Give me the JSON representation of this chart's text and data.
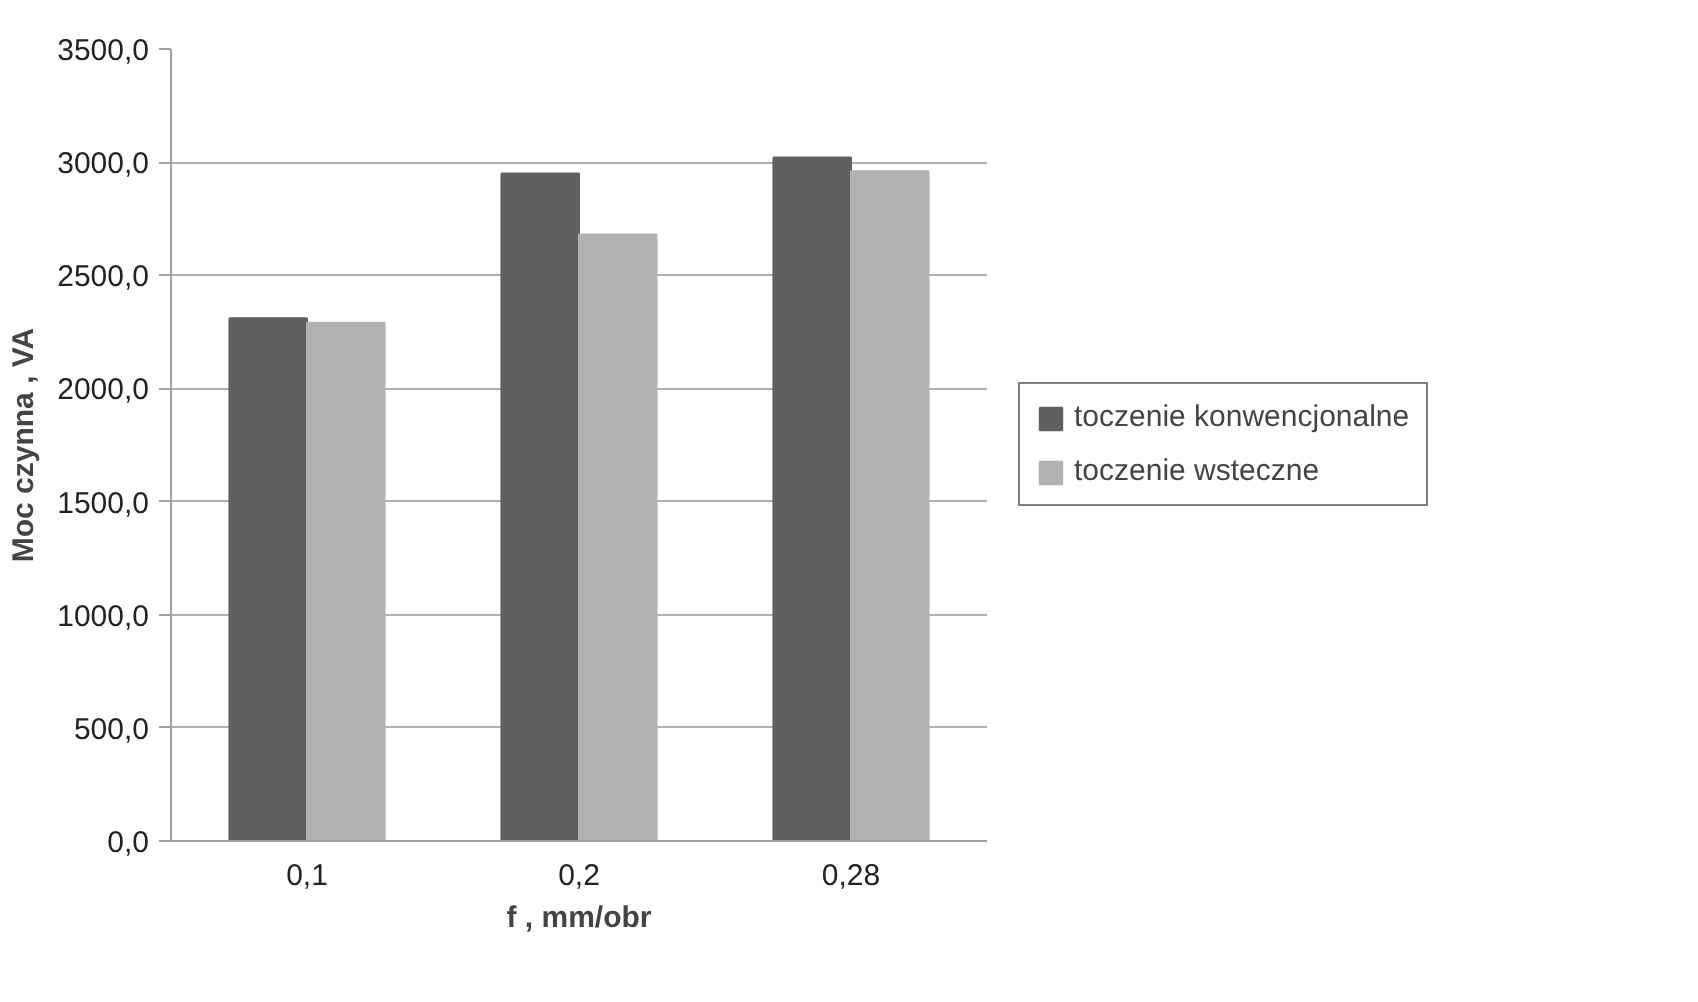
{
  "chart_data": {
    "type": "bar",
    "xlabel": "f , mm/obr",
    "ylabel": "Moc czynna , VA",
    "categories": [
      "0,1",
      "0,2",
      "0,28"
    ],
    "series": [
      {
        "name": "toczenie konwencjonalne",
        "color": "#606060",
        "values": [
          2310,
          2950,
          3020
        ]
      },
      {
        "name": "toczenie wsteczne",
        "color": "#b2b2b2",
        "values": [
          2290,
          2680,
          2960
        ]
      }
    ],
    "ylim": [
      0,
      3500
    ],
    "yticks": [
      {
        "value": 0,
        "label": "0,0"
      },
      {
        "value": 500,
        "label": "500,0"
      },
      {
        "value": 1000,
        "label": "1000,0"
      },
      {
        "value": 1500,
        "label": "1500,0"
      },
      {
        "value": 2000,
        "label": "2000,0"
      },
      {
        "value": 2500,
        "label": "2500,0"
      },
      {
        "value": 3000,
        "label": "3000,0"
      },
      {
        "value": 3500,
        "label": "3500,0"
      }
    ],
    "grid": "y",
    "legend": "right"
  }
}
